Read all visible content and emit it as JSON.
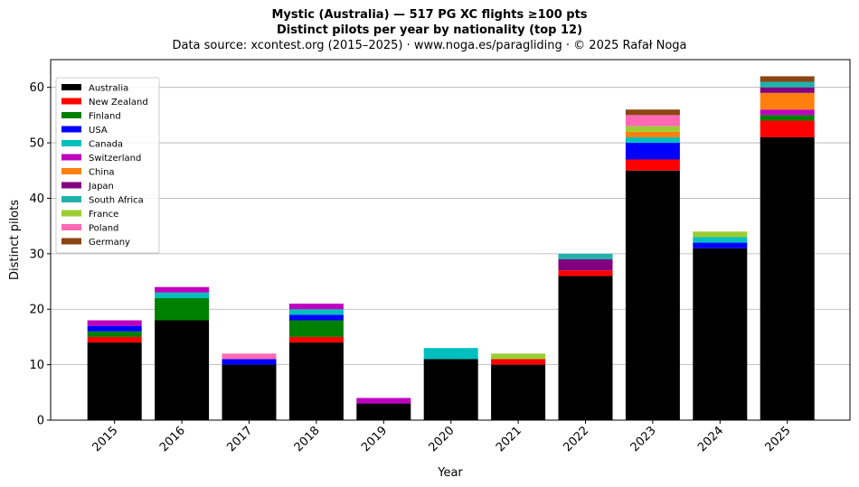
{
  "chart_data": {
    "type": "bar",
    "stacked": true,
    "title_line1": "Mystic (Australia)  —  517 PG XC flights ≥100 pts",
    "title_line2": "Distinct pilots per year by nationality (top 12)",
    "subtitle": "Data source: xcontest.org (2015–2025)  ·  www.noga.es/paragliding  ·  © 2025 Rafał Noga",
    "xlabel": "Year",
    "ylabel": "Distinct pilots",
    "ylim": [
      0,
      65
    ],
    "yticks": [
      0,
      10,
      20,
      30,
      40,
      50,
      60
    ],
    "grid": "y",
    "legend_position": "top-left",
    "categories": [
      "2015",
      "2016",
      "2017",
      "2018",
      "2019",
      "2020",
      "2021",
      "2022",
      "2023",
      "2024",
      "2025"
    ],
    "series": [
      {
        "name": "Australia",
        "color": "#000000",
        "values": [
          14,
          18,
          10,
          14,
          3,
          11,
          10,
          26,
          45,
          31,
          51
        ]
      },
      {
        "name": "New Zealand",
        "color": "#ff0000",
        "values": [
          1,
          0,
          0,
          1,
          0,
          0,
          1,
          1,
          2,
          0,
          3
        ]
      },
      {
        "name": "Finland",
        "color": "#008000",
        "values": [
          1,
          4,
          0,
          3,
          0,
          0,
          0,
          0,
          0,
          0,
          1
        ]
      },
      {
        "name": "USA",
        "color": "#0000ff",
        "values": [
          1,
          0,
          1,
          1,
          0,
          0,
          0,
          0,
          3,
          1,
          0
        ]
      },
      {
        "name": "Canada",
        "color": "#00bfbf",
        "values": [
          0,
          1,
          0,
          1,
          0,
          2,
          0,
          0,
          1,
          1,
          0
        ]
      },
      {
        "name": "Switzerland",
        "color": "#bf00bf",
        "values": [
          1,
          1,
          0,
          1,
          1,
          0,
          0,
          0,
          0,
          0,
          1
        ]
      },
      {
        "name": "China",
        "color": "#ff7f0e",
        "values": [
          0,
          0,
          0,
          0,
          0,
          0,
          0,
          0,
          1,
          0,
          3
        ]
      },
      {
        "name": "Japan",
        "color": "#800080",
        "values": [
          0,
          0,
          0,
          0,
          0,
          0,
          0,
          2,
          0,
          0,
          1
        ]
      },
      {
        "name": "South Africa",
        "color": "#20b2aa",
        "values": [
          0,
          0,
          0,
          0,
          0,
          0,
          0,
          1,
          0,
          0,
          1
        ]
      },
      {
        "name": "France",
        "color": "#9acd32",
        "values": [
          0,
          0,
          0,
          0,
          0,
          0,
          1,
          0,
          1,
          1,
          0
        ]
      },
      {
        "name": "Poland",
        "color": "#ff69b4",
        "values": [
          0,
          0,
          1,
          0,
          0,
          0,
          0,
          0,
          2,
          0,
          0
        ]
      },
      {
        "name": "Germany",
        "color": "#8b4513",
        "values": [
          0,
          0,
          0,
          0,
          0,
          0,
          0,
          0,
          1,
          0,
          1
        ]
      }
    ]
  }
}
